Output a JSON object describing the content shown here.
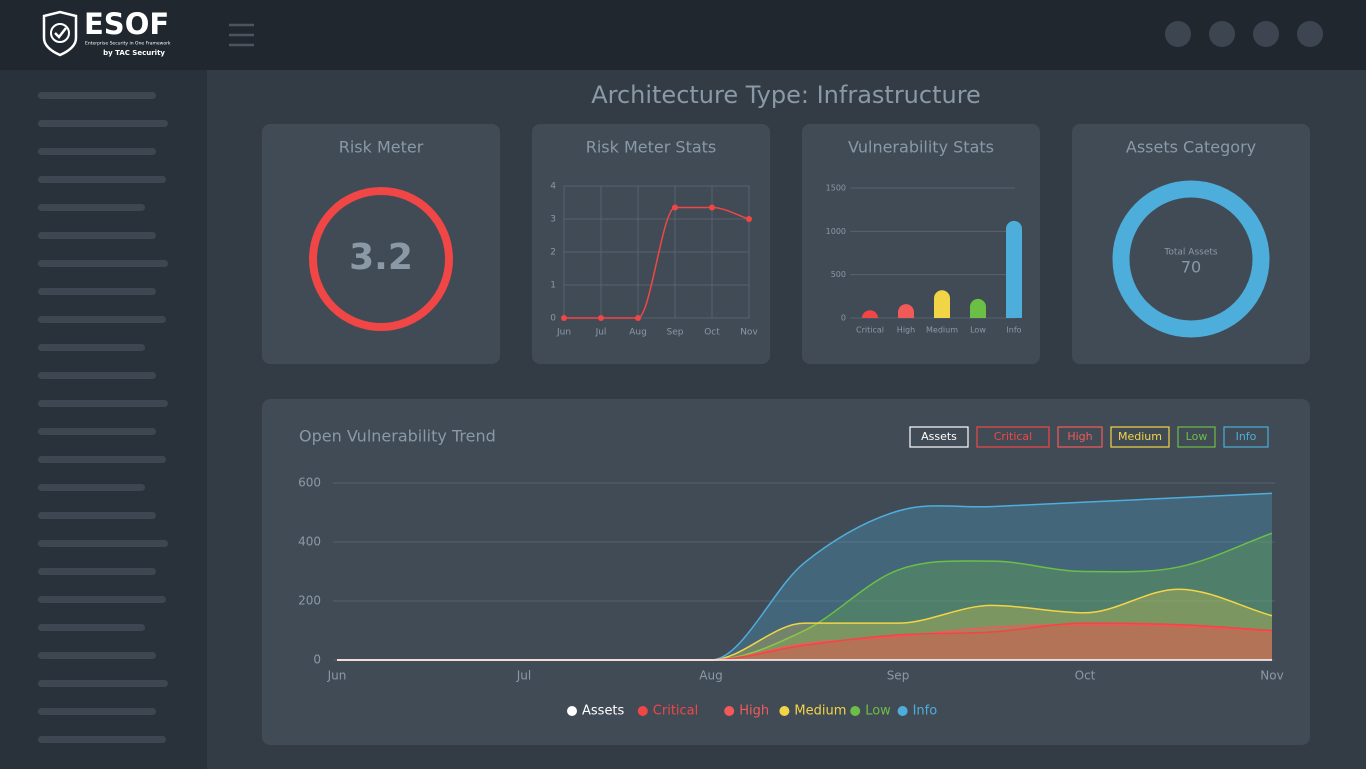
{
  "logo": {
    "name": "ESOF",
    "tagline": "Enterprise Security in One Framework",
    "by": "by TAC Security"
  },
  "page_title": "Architecture Type: Infrastructure",
  "risk_meter": {
    "title": "Risk Meter",
    "value": 3.2,
    "color": "#f04646"
  },
  "risk_stats": {
    "title": "Risk Meter Stats",
    "type": "line",
    "categories": [
      "Jun",
      "Jul",
      "Aug",
      "Sep",
      "Oct",
      "Nov"
    ],
    "values": [
      0,
      0,
      0,
      3.35,
      3.35,
      3
    ],
    "color": "#f04646",
    "ylim": [
      0,
      4
    ],
    "yticks": [
      0,
      1,
      2,
      3,
      4
    ],
    "grid": true
  },
  "vulnerability_stats": {
    "title": "Vulnerability Stats",
    "type": "bar",
    "categories": [
      "Critical",
      "High",
      "Medium",
      "Low",
      "Info"
    ],
    "values": [
      90,
      160,
      320,
      220,
      1120
    ],
    "colors": [
      "#f04646",
      "#f25a5a",
      "#f2d547",
      "#6cbf45",
      "#4eaedb"
    ],
    "ylim": [
      0,
      1500
    ],
    "yticks": [
      0,
      500,
      1000,
      1500
    ],
    "grid": true
  },
  "assets_category": {
    "title": "Assets Category",
    "center_label": "Total Assets",
    "total": 70,
    "color": "#4eaedb"
  },
  "vulnerability_trend": {
    "title": "Open Vulnerability Trend",
    "type": "area",
    "categories": [
      "Jun",
      null,
      "Jul",
      null,
      "Aug",
      null,
      "Sep",
      null,
      "Oct",
      null,
      "Nov"
    ],
    "series": [
      {
        "name": "Assets",
        "color": "#ffffff",
        "values": [
          0,
          0,
          0,
          0,
          0,
          0,
          0,
          0,
          0,
          0,
          0
        ]
      },
      {
        "name": "Critical",
        "color": "#f04646",
        "values": [
          0,
          0,
          0,
          0,
          0,
          50,
          85,
          95,
          125,
          120,
          100
        ]
      },
      {
        "name": "High",
        "color": "#f25a5a",
        "values": [
          0,
          0,
          0,
          0,
          0,
          55,
          80,
          110,
          120,
          115,
          98
        ]
      },
      {
        "name": "Medium",
        "color": "#f2d547",
        "values": [
          0,
          0,
          0,
          0,
          0,
          125,
          125,
          185,
          160,
          240,
          150
        ]
      },
      {
        "name": "Low",
        "color": "#6cbf45",
        "values": [
          0,
          0,
          0,
          0,
          0,
          100,
          305,
          335,
          300,
          315,
          430
        ]
      },
      {
        "name": "Info",
        "color": "#4eaedb",
        "values": [
          0,
          0,
          0,
          0,
          0,
          330,
          505,
          520,
          535,
          550,
          565
        ]
      }
    ],
    "ylim": [
      0,
      600
    ],
    "yticks": [
      0,
      200,
      400,
      600
    ],
    "grid": true
  }
}
